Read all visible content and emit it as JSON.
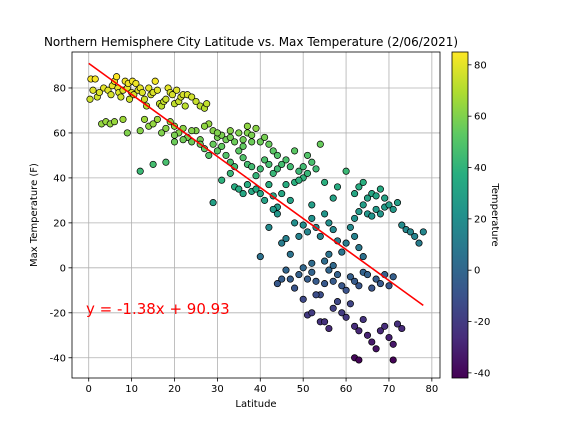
{
  "chart_data": {
    "type": "scatter",
    "title": "Northern Hemisphere City Latitude vs. Max Temperature (2/06/2021)",
    "xlabel": "Latitude",
    "ylabel": "Max Temperature (F)",
    "xlim": [
      -3.9,
      81.9
    ],
    "ylim": [
      -49,
      96
    ],
    "xticks": [
      0,
      10,
      20,
      30,
      40,
      50,
      60,
      70,
      80
    ],
    "yticks": [
      -40,
      -20,
      0,
      20,
      40,
      60,
      80
    ],
    "grid": true,
    "colorbar": {
      "label": "Temperature",
      "min": -42,
      "max": 85,
      "ticks": [
        -40,
        -20,
        0,
        20,
        40,
        60,
        80
      ],
      "colormap": "viridis"
    },
    "regression": {
      "equation": "y = -1.38x + 90.93",
      "slope": -1.38,
      "intercept": 90.93,
      "x_range": [
        0,
        78
      ],
      "color": "#ff0000",
      "annotation_position": "lower-left"
    },
    "colors": {
      "marker_edge": "#000000",
      "regression_line": "#ff0000"
    },
    "points": [
      [
        0.3,
        75
      ],
      [
        0.5,
        84
      ],
      [
        1.5,
        84
      ],
      [
        1,
        79
      ],
      [
        2,
        76
      ],
      [
        2.5,
        78
      ],
      [
        3.5,
        80
      ],
      [
        3,
        64
      ],
      [
        4,
        65
      ],
      [
        5,
        64
      ],
      [
        6,
        65
      ],
      [
        4.5,
        79
      ],
      [
        5.2,
        77
      ],
      [
        5.5,
        81
      ],
      [
        6,
        83
      ],
      [
        6.5,
        85
      ],
      [
        6.8,
        80
      ],
      [
        7,
        78
      ],
      [
        7.5,
        76
      ],
      [
        8,
        79
      ],
      [
        8.5,
        83
      ],
      [
        9,
        80
      ],
      [
        9.5,
        75
      ],
      [
        9.2,
        82
      ],
      [
        10,
        78
      ],
      [
        10.5,
        77
      ],
      [
        10.2,
        83
      ],
      [
        11,
        82
      ],
      [
        11.5,
        79
      ],
      [
        12,
        80
      ],
      [
        12.5,
        78
      ],
      [
        13,
        75
      ],
      [
        13.5,
        72
      ],
      [
        14,
        80
      ],
      [
        14.5,
        77
      ],
      [
        15,
        78
      ],
      [
        15.5,
        83
      ],
      [
        16,
        79
      ],
      [
        16.5,
        73
      ],
      [
        17,
        72
      ],
      [
        17.5,
        74
      ],
      [
        18,
        75
      ],
      [
        18.5,
        80
      ],
      [
        19,
        78
      ],
      [
        19.5,
        77
      ],
      [
        20,
        73
      ],
      [
        20.5,
        79
      ],
      [
        21,
        74
      ],
      [
        21.5,
        76
      ],
      [
        22,
        77
      ],
      [
        22.5,
        72
      ],
      [
        23,
        77
      ],
      [
        24,
        76
      ],
      [
        25,
        74
      ],
      [
        26,
        72
      ],
      [
        27,
        71
      ],
      [
        27.5,
        73
      ],
      [
        8,
        66
      ],
      [
        9,
        60
      ],
      [
        12,
        61
      ],
      [
        13,
        66
      ],
      [
        14,
        63
      ],
      [
        15,
        64
      ],
      [
        16,
        66
      ],
      [
        17,
        60
      ],
      [
        18,
        62
      ],
      [
        19,
        65
      ],
      [
        20,
        63
      ],
      [
        21,
        60
      ],
      [
        22,
        62
      ],
      [
        23,
        58
      ],
      [
        24,
        56
      ],
      [
        25,
        61
      ],
      [
        26,
        57
      ],
      [
        27,
        53
      ],
      [
        28,
        64
      ],
      [
        29,
        61
      ],
      [
        30,
        58
      ],
      [
        31,
        59
      ],
      [
        32,
        57
      ],
      [
        33,
        58
      ],
      [
        34,
        56
      ],
      [
        35,
        60
      ],
      [
        36,
        57
      ],
      [
        37,
        60
      ],
      [
        38,
        56
      ],
      [
        39,
        62
      ],
      [
        40,
        56
      ],
      [
        41,
        58
      ],
      [
        42,
        55
      ],
      [
        43,
        52
      ],
      [
        44,
        50
      ],
      [
        28,
        50
      ],
      [
        29,
        55
      ],
      [
        30,
        52
      ],
      [
        31,
        54
      ],
      [
        32,
        50
      ],
      [
        33,
        47
      ],
      [
        34,
        45
      ],
      [
        35,
        52
      ],
      [
        36,
        49
      ],
      [
        37,
        46
      ],
      [
        38,
        45
      ],
      [
        39,
        41
      ],
      [
        40,
        44
      ],
      [
        41,
        48
      ],
      [
        42,
        46
      ],
      [
        43,
        42
      ],
      [
        44,
        44
      ],
      [
        45,
        46
      ],
      [
        29,
        29
      ],
      [
        31,
        39
      ],
      [
        33,
        42
      ],
      [
        34,
        36
      ],
      [
        35,
        35
      ],
      [
        36,
        33
      ],
      [
        37,
        37
      ],
      [
        38,
        34
      ],
      [
        39,
        35
      ],
      [
        40,
        33
      ],
      [
        41,
        30
      ],
      [
        42,
        37
      ],
      [
        43,
        32
      ],
      [
        44,
        27
      ],
      [
        45,
        33
      ],
      [
        46,
        37
      ],
      [
        47,
        30
      ],
      [
        48,
        38
      ],
      [
        49,
        43
      ],
      [
        50,
        40
      ],
      [
        51,
        42
      ],
      [
        52,
        28
      ],
      [
        12,
        43
      ],
      [
        15,
        46
      ],
      [
        18,
        47
      ],
      [
        20,
        56
      ],
      [
        40,
        5
      ],
      [
        42,
        18
      ],
      [
        43,
        26
      ],
      [
        44,
        24
      ],
      [
        45,
        11
      ],
      [
        46,
        13
      ],
      [
        47,
        6
      ],
      [
        48,
        20
      ],
      [
        49,
        14
      ],
      [
        50,
        19
      ],
      [
        51,
        16
      ],
      [
        52,
        22
      ],
      [
        53,
        18
      ],
      [
        54,
        14
      ],
      [
        55,
        24
      ],
      [
        56,
        20
      ],
      [
        57,
        17
      ],
      [
        58,
        12
      ],
      [
        59,
        7
      ],
      [
        60,
        11
      ],
      [
        61,
        18
      ],
      [
        62,
        14
      ],
      [
        63,
        9
      ],
      [
        64,
        5
      ],
      [
        44,
        -7
      ],
      [
        45,
        -5
      ],
      [
        46,
        -1
      ],
      [
        47,
        -5
      ],
      [
        48,
        -9
      ],
      [
        49,
        -3
      ],
      [
        50,
        0
      ],
      [
        51,
        -5
      ],
      [
        52,
        -2
      ],
      [
        53,
        -6
      ],
      [
        54,
        -12
      ],
      [
        55,
        -7
      ],
      [
        56,
        -1
      ],
      [
        57,
        -6
      ],
      [
        58,
        -3
      ],
      [
        59,
        -8
      ],
      [
        60,
        -10
      ],
      [
        61,
        -4
      ],
      [
        62,
        -6
      ],
      [
        63,
        -8
      ],
      [
        64,
        -2
      ],
      [
        65,
        -3
      ],
      [
        66,
        -9
      ],
      [
        67,
        -5
      ],
      [
        68,
        -7
      ],
      [
        69,
        -3
      ],
      [
        70,
        -8
      ],
      [
        71,
        -4
      ],
      [
        50,
        -14
      ],
      [
        51,
        -21
      ],
      [
        52,
        -20
      ],
      [
        53,
        -12
      ],
      [
        54,
        -24
      ],
      [
        55,
        -24
      ],
      [
        56,
        -27
      ],
      [
        57,
        -18
      ],
      [
        58,
        -15
      ],
      [
        59,
        -20
      ],
      [
        60,
        -22
      ],
      [
        61,
        -16
      ],
      [
        62,
        -26
      ],
      [
        63,
        -28
      ],
      [
        64,
        -23
      ],
      [
        65,
        -30
      ],
      [
        66,
        -33
      ],
      [
        67,
        -36
      ],
      [
        68,
        -28
      ],
      [
        69,
        -26
      ],
      [
        70,
        -31
      ],
      [
        71,
        -34
      ],
      [
        72,
        -25
      ],
      [
        73,
        -27
      ],
      [
        62,
        -40
      ],
      [
        63,
        -41
      ],
      [
        71,
        -41
      ],
      [
        52,
        2
      ],
      [
        55,
        3
      ],
      [
        56,
        6
      ],
      [
        57,
        1
      ],
      [
        62,
        22
      ],
      [
        63,
        25
      ],
      [
        64,
        28
      ],
      [
        65,
        24
      ],
      [
        66,
        23
      ],
      [
        67,
        26
      ],
      [
        68,
        24
      ],
      [
        69,
        27
      ],
      [
        70,
        28
      ],
      [
        71,
        26
      ],
      [
        72,
        29
      ],
      [
        73,
        19
      ],
      [
        74,
        17
      ],
      [
        75,
        16
      ],
      [
        76,
        14
      ],
      [
        77,
        11
      ],
      [
        78,
        16
      ],
      [
        60,
        43
      ],
      [
        62,
        33
      ],
      [
        63,
        36
      ],
      [
        64,
        38
      ],
      [
        65,
        31
      ],
      [
        66,
        33
      ],
      [
        67,
        32
      ],
      [
        68,
        35
      ],
      [
        69,
        31
      ],
      [
        55,
        38
      ],
      [
        57,
        31
      ],
      [
        58,
        36
      ],
      [
        46,
        48
      ],
      [
        47,
        45
      ],
      [
        48,
        52
      ],
      [
        49,
        39
      ],
      [
        50,
        45
      ],
      [
        51,
        50
      ],
      [
        52,
        47
      ],
      [
        53,
        44
      ],
      [
        54,
        55
      ],
      [
        20,
        59
      ],
      [
        22,
        57
      ],
      [
        24,
        61
      ],
      [
        26,
        55
      ],
      [
        27,
        63
      ],
      [
        30,
        60
      ],
      [
        33,
        61
      ],
      [
        36,
        54
      ],
      [
        37,
        63
      ],
      [
        38,
        59
      ]
    ]
  }
}
